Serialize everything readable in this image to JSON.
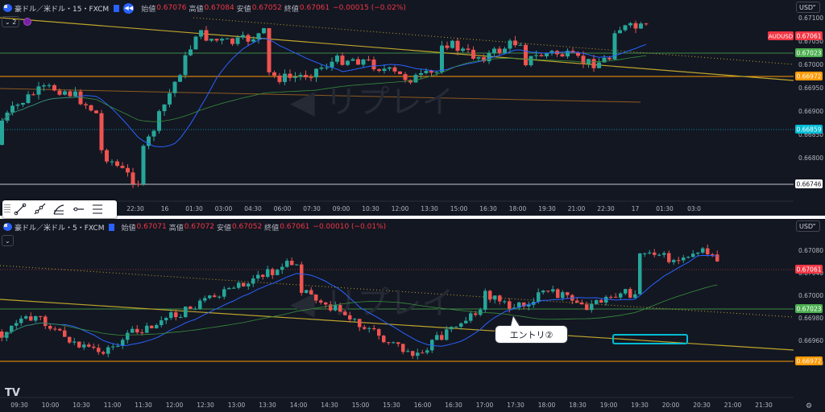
{
  "top_chart": {
    "symbol": "豪ドル／米ドル・15・FXCM",
    "open_label": "始値",
    "open": "0.67076",
    "high_label": "高値",
    "high": "0.67084",
    "low_label": "安値",
    "low": "0.67052",
    "close_label": "終値",
    "close": "0.67061",
    "change": "−0.00015 (−0.02%)",
    "indicator_count": "2",
    "currency": "USD",
    "watermark": "リプレイ",
    "x_ticks": [
      "22:30",
      "16",
      "01:30",
      "03:00",
      "04:30",
      "06:00",
      "07:30",
      "09:00",
      "10:30",
      "12:00",
      "13:30",
      "15:00",
      "16:30",
      "18:00",
      "19:30",
      "21:00",
      "22:30",
      "17",
      "01:30",
      "03:0"
    ],
    "y_ticks": [
      "0.67100",
      "0.67050",
      "0.67000",
      "0.66950",
      "0.66900",
      "0.66850",
      "0.66800"
    ],
    "price_tags": [
      {
        "text": "AUDUSD",
        "value": "0.67061",
        "color": "#f23645"
      },
      {
        "text": "",
        "value": "0.67023",
        "color": "#4caf50"
      },
      {
        "text": "",
        "value": "0.66972",
        "color": "#ff9800"
      },
      {
        "text": "",
        "value": "0.66859",
        "color": "#00bcd4"
      },
      {
        "text": "",
        "value": "0.66746",
        "color": "#ffffff"
      }
    ]
  },
  "bottom_chart": {
    "symbol": "豪ドル／米ドル・5・FXCM",
    "open_label": "始値",
    "open": "0.67071",
    "high_label": "高値",
    "high": "0.67072",
    "low_label": "安値",
    "low": "0.67052",
    "close_label": "終値",
    "close": "0.67061",
    "change": "−0.00010 (−0.01%)",
    "currency": "USD",
    "watermark": "リプレイ",
    "x_ticks": [
      "09:30",
      "10:00",
      "10:30",
      "11:00",
      "11:30",
      "12:00",
      "12:30",
      "13:00",
      "13:30",
      "14:00",
      "14:30",
      "15:00",
      "15:30",
      "16:00",
      "16:30",
      "17:00",
      "17:30",
      "18:00",
      "18:30",
      "19:00",
      "19:30",
      "20:00",
      "20:30",
      "21:00",
      "21:30"
    ],
    "y_ticks": [
      "0.67080",
      "0.67040",
      "0.67000",
      "0.66980",
      "0.66960",
      "0.66940"
    ],
    "price_tags": [
      {
        "value": "0.67061",
        "color": "#f23645"
      },
      {
        "value": "0.67023",
        "color": "#4caf50"
      },
      {
        "value": "0.66972",
        "color": "#ff9800"
      }
    ],
    "annotation": "エントリ②"
  },
  "toolbar": {
    "tools": [
      "trend-line",
      "ray-line",
      "info-line",
      "horizontal-ray",
      "parallel-channel"
    ]
  },
  "colors": {
    "bg": "#131722",
    "up": "#26a69a",
    "down": "#ef5350",
    "ma_fast": "#2962ff",
    "ma_slow": "#388e3c",
    "trend": "#bfa52b",
    "level": "#ff9800"
  }
}
